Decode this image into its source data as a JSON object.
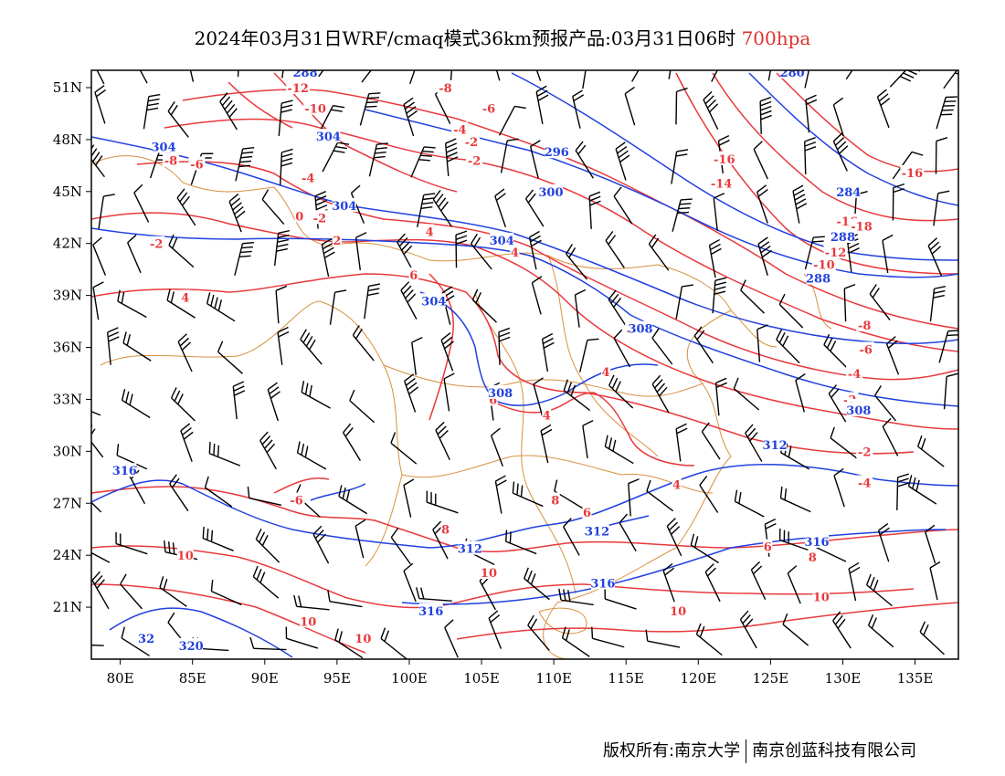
{
  "title": {
    "main": "2024年03月31日WRF/cmaq模式36km预报产品:03月31日06时",
    "level": "700hpa"
  },
  "credit": {
    "left": "版权所有:南京大学",
    "right": "南京创蓝科技有限公司"
  },
  "colors": {
    "temperature": "#e8393c",
    "height": "#2040e0",
    "border": "#d89040",
    "wind": "#000000",
    "level_title": "#e03030"
  },
  "axes": {
    "lon_labels": [
      "80E",
      "85E",
      "90E",
      "95E",
      "100E",
      "105E",
      "110E",
      "115E",
      "120E",
      "125E",
      "130E",
      "135E"
    ],
    "lon_values": [
      80,
      85,
      90,
      95,
      100,
      105,
      110,
      115,
      120,
      125,
      130,
      135
    ],
    "lat_labels": [
      "51N",
      "48N",
      "45N",
      "42N",
      "39N",
      "36N",
      "33N",
      "30N",
      "27N",
      "24N",
      "21N"
    ],
    "lat_values": [
      51,
      48,
      45,
      42,
      39,
      36,
      33,
      30,
      27,
      24,
      21
    ],
    "lon_range": [
      78,
      138
    ],
    "lat_range": [
      18,
      52
    ]
  },
  "temperature_labels": [
    {
      "text": "-12",
      "lon": 92.3,
      "lat": 51.0
    },
    {
      "text": "-10",
      "lon": 93.5,
      "lat": 49.8
    },
    {
      "text": "-8",
      "lon": 102.5,
      "lat": 51.0
    },
    {
      "text": "-6",
      "lon": 105.5,
      "lat": 49.8
    },
    {
      "text": "-4",
      "lon": 103.5,
      "lat": 48.6
    },
    {
      "text": "-2",
      "lon": 104.3,
      "lat": 47.9
    },
    {
      "text": "-2",
      "lon": 104.5,
      "lat": 46.8
    },
    {
      "text": "-6",
      "lon": 94.0,
      "lat": 48.1
    },
    {
      "text": "-8",
      "lon": 83.5,
      "lat": 46.8
    },
    {
      "text": "-6",
      "lon": 85.3,
      "lat": 46.6
    },
    {
      "text": "-4",
      "lon": 93.0,
      "lat": 45.8
    },
    {
      "text": "0",
      "lon": 92.4,
      "lat": 43.6
    },
    {
      "text": "-2",
      "lon": 93.8,
      "lat": 43.5
    },
    {
      "text": "-2",
      "lon": 82.5,
      "lat": 42.0
    },
    {
      "text": "2",
      "lon": 95.0,
      "lat": 42.2
    },
    {
      "text": "4",
      "lon": 101.4,
      "lat": 42.7
    },
    {
      "text": "4",
      "lon": 107.3,
      "lat": 41.5
    },
    {
      "text": "6",
      "lon": 100.3,
      "lat": 40.2
    },
    {
      "text": "4",
      "lon": 84.5,
      "lat": 38.9
    },
    {
      "text": "-16",
      "lon": 121.8,
      "lat": 46.9
    },
    {
      "text": "-14",
      "lon": 121.6,
      "lat": 45.5
    },
    {
      "text": "-16",
      "lon": 130.3,
      "lat": 43.3
    },
    {
      "text": "-18",
      "lon": 131.3,
      "lat": 43.0
    },
    {
      "text": "-16",
      "lon": 134.8,
      "lat": 46.1
    },
    {
      "text": "-12",
      "lon": 129.5,
      "lat": 41.5
    },
    {
      "text": "-10",
      "lon": 128.7,
      "lat": 40.8
    },
    {
      "text": "-8",
      "lon": 131.5,
      "lat": 37.3
    },
    {
      "text": "-6",
      "lon": 131.6,
      "lat": 35.9
    },
    {
      "text": "-4",
      "lon": 130.8,
      "lat": 34.5
    },
    {
      "text": "-2",
      "lon": 130.5,
      "lat": 33.0
    },
    {
      "text": "0",
      "lon": 130.6,
      "lat": 32.6
    },
    {
      "text": "-2",
      "lon": 131.5,
      "lat": 30.0
    },
    {
      "text": "-4",
      "lon": 131.5,
      "lat": 28.2
    },
    {
      "text": "-2",
      "lon": 115.5,
      "lat": 37.0
    },
    {
      "text": "4",
      "lon": 113.6,
      "lat": 34.6
    },
    {
      "text": "4",
      "lon": 109.5,
      "lat": 32.1
    },
    {
      "text": "6",
      "lon": 105.8,
      "lat": 33.0
    },
    {
      "text": "8",
      "lon": 110.1,
      "lat": 27.2
    },
    {
      "text": "6",
      "lon": 112.3,
      "lat": 26.5
    },
    {
      "text": "4",
      "lon": 118.5,
      "lat": 28.1
    },
    {
      "text": "6",
      "lon": 124.8,
      "lat": 24.5
    },
    {
      "text": "8",
      "lon": 127.9,
      "lat": 23.9
    },
    {
      "text": "10",
      "lon": 128.5,
      "lat": 21.6
    },
    {
      "text": "10",
      "lon": 118.6,
      "lat": 20.8
    },
    {
      "text": "10",
      "lon": 105.5,
      "lat": 23.0
    },
    {
      "text": "8",
      "lon": 102.5,
      "lat": 25.5
    },
    {
      "text": "-6",
      "lon": 92.2,
      "lat": 27.2
    },
    {
      "text": "10",
      "lon": 84.5,
      "lat": 24.0
    },
    {
      "text": "10",
      "lon": 93.0,
      "lat": 20.2
    },
    {
      "text": "10",
      "lon": 96.8,
      "lat": 19.2
    }
  ],
  "height_labels": [
    {
      "text": "288",
      "lon": 92.8,
      "lat": 51.9
    },
    {
      "text": "280",
      "lon": 126.5,
      "lat": 51.9
    },
    {
      "text": "304",
      "lon": 83.0,
      "lat": 47.6
    },
    {
      "text": "304",
      "lon": 94.4,
      "lat": 48.2
    },
    {
      "text": "296",
      "lon": 110.2,
      "lat": 47.3
    },
    {
      "text": "300",
      "lon": 109.8,
      "lat": 45.0
    },
    {
      "text": "304",
      "lon": 95.5,
      "lat": 44.2
    },
    {
      "text": "304",
      "lon": 106.4,
      "lat": 42.2
    },
    {
      "text": "284",
      "lon": 130.4,
      "lat": 45.0
    },
    {
      "text": "288",
      "lon": 130.0,
      "lat": 42.4
    },
    {
      "text": "288",
      "lon": 128.3,
      "lat": 40.0
    },
    {
      "text": "304",
      "lon": 101.7,
      "lat": 38.7
    },
    {
      "text": "308",
      "lon": 116.0,
      "lat": 37.1
    },
    {
      "text": "308",
      "lon": 106.3,
      "lat": 33.4
    },
    {
      "text": "308",
      "lon": 131.1,
      "lat": 32.4
    },
    {
      "text": "312",
      "lon": 125.3,
      "lat": 30.4
    },
    {
      "text": "316",
      "lon": 80.3,
      "lat": 28.9
    },
    {
      "text": "312",
      "lon": 104.2,
      "lat": 24.4
    },
    {
      "text": "312",
      "lon": 113.0,
      "lat": 25.4
    },
    {
      "text": "316",
      "lon": 113.4,
      "lat": 22.4
    },
    {
      "text": "316",
      "lon": 128.2,
      "lat": 24.8
    },
    {
      "text": "316",
      "lon": 101.5,
      "lat": 20.8
    },
    {
      "text": "320",
      "lon": 84.9,
      "lat": 18.8
    },
    {
      "text": "32",
      "lon": 81.8,
      "lat": 19.2
    }
  ]
}
